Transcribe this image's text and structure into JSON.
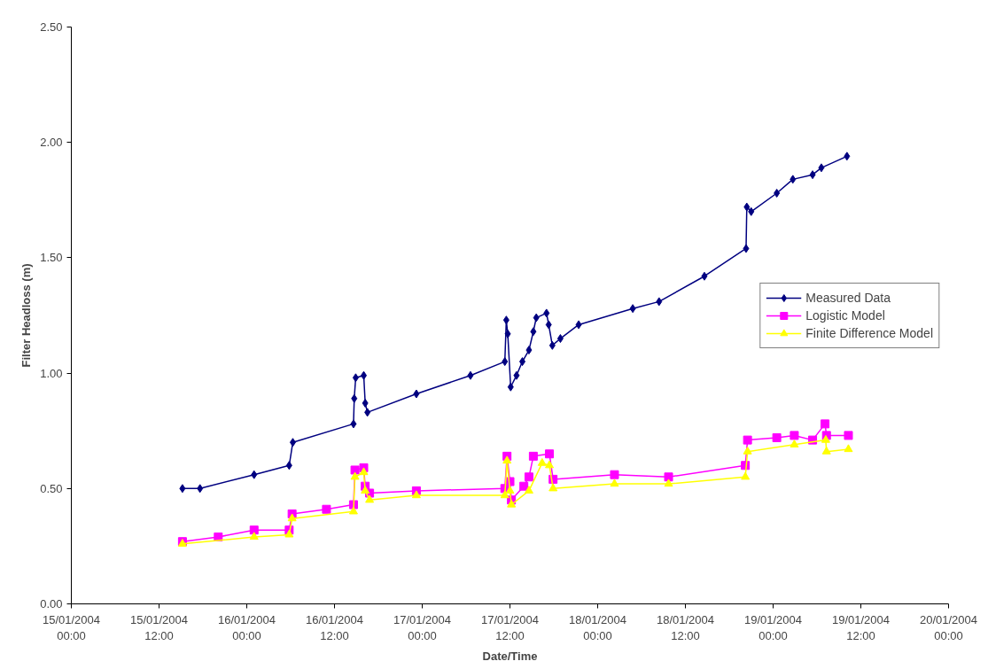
{
  "chart_data": {
    "type": "line",
    "xlabel": "Date/Time",
    "ylabel": "Filter Headloss (m)",
    "xlim": [
      "2004-01-15T00:00",
      "2004-01-20T00:00"
    ],
    "xticks": [
      {
        "value": "2004-01-15T00:00",
        "label": "15/01/2004\n00:00"
      },
      {
        "value": "2004-01-15T12:00",
        "label": "15/01/2004\n12:00"
      },
      {
        "value": "2004-01-16T00:00",
        "label": "16/01/2004\n00:00"
      },
      {
        "value": "2004-01-16T12:00",
        "label": "16/01/2004\n12:00"
      },
      {
        "value": "2004-01-17T00:00",
        "label": "17/01/2004\n00:00"
      },
      {
        "value": "2004-01-17T12:00",
        "label": "17/01/2004\n12:00"
      },
      {
        "value": "2004-01-18T00:00",
        "label": "18/01/2004\n00:00"
      },
      {
        "value": "2004-01-18T12:00",
        "label": "18/01/2004\n12:00"
      },
      {
        "value": "2004-01-19T00:00",
        "label": "19/01/2004\n00:00"
      },
      {
        "value": "2004-01-19T12:00",
        "label": "19/01/2004\n12:00"
      },
      {
        "value": "2004-01-20T00:00",
        "label": "20/01/2004\n00:00"
      }
    ],
    "ylim": [
      0,
      2.5
    ],
    "yticks": [
      {
        "value": 0,
        "label": "0.00"
      },
      {
        "value": 0.5,
        "label": "0.50"
      },
      {
        "value": 1,
        "label": "1.00"
      },
      {
        "value": 1.5,
        "label": "1.50"
      },
      {
        "value": 2,
        "label": "2.00"
      },
      {
        "value": 2.5,
        "label": "2.50"
      }
    ],
    "grid": false,
    "legend": "right",
    "series": [
      {
        "name": "Measured Data",
        "color": "#000080",
        "marker": "diamond",
        "x": [
          "2004-01-15T15:12",
          "2004-01-15T17:36",
          "2004-01-16T01:00",
          "2004-01-16T05:48",
          "2004-01-16T06:18",
          "2004-01-16T14:36",
          "2004-01-16T14:42",
          "2004-01-16T14:54",
          "2004-01-16T16:00",
          "2004-01-16T16:12",
          "2004-01-16T16:30",
          "2004-01-16T23:12",
          "2004-01-17T06:36",
          "2004-01-17T11:18",
          "2004-01-17T11:30",
          "2004-01-17T11:42",
          "2004-01-17T12:06",
          "2004-01-17T12:54",
          "2004-01-17T13:42",
          "2004-01-17T14:36",
          "2004-01-17T15:12",
          "2004-01-17T15:36",
          "2004-01-17T17:00",
          "2004-01-17T17:18",
          "2004-01-17T17:48",
          "2004-01-17T18:54",
          "2004-01-17T21:24",
          "2004-01-18T04:48",
          "2004-01-18T08:24",
          "2004-01-18T14:36",
          "2004-01-18T20:18",
          "2004-01-18T20:24",
          "2004-01-18T21:00",
          "2004-01-19T00:30",
          "2004-01-19T02:42",
          "2004-01-19T05:24",
          "2004-01-19T06:36",
          "2004-01-19T10:06"
        ],
        "values": [
          0.5,
          0.5,
          0.56,
          0.6,
          0.7,
          0.78,
          0.89,
          0.98,
          0.99,
          0.87,
          0.83,
          0.91,
          0.99,
          1.05,
          1.23,
          1.17,
          0.94,
          0.99,
          1.05,
          1.1,
          1.18,
          1.24,
          1.26,
          1.21,
          1.12,
          1.15,
          1.21,
          1.28,
          1.31,
          1.42,
          1.54,
          1.72,
          1.7,
          1.78,
          1.84,
          1.86,
          1.89,
          1.94
        ]
      },
      {
        "name": "Logistic Model",
        "color": "#ff00ff",
        "marker": "square",
        "x": [
          "2004-01-15T15:12",
          "2004-01-15T20:06",
          "2004-01-16T01:00",
          "2004-01-16T05:48",
          "2004-01-16T06:12",
          "2004-01-16T10:54",
          "2004-01-16T14:36",
          "2004-01-16T14:48",
          "2004-01-16T16:00",
          "2004-01-16T16:12",
          "2004-01-16T16:48",
          "2004-01-16T23:12",
          "2004-01-17T11:18",
          "2004-01-17T11:36",
          "2004-01-17T12:00",
          "2004-01-17T12:12",
          "2004-01-17T13:54",
          "2004-01-17T14:36",
          "2004-01-17T15:12",
          "2004-01-17T17:24",
          "2004-01-17T17:54",
          "2004-01-18T02:18",
          "2004-01-18T09:42",
          "2004-01-18T20:12",
          "2004-01-18T20:30",
          "2004-01-19T00:30",
          "2004-01-19T02:54",
          "2004-01-19T05:24",
          "2004-01-19T07:06",
          "2004-01-19T07:18",
          "2004-01-19T10:18"
        ],
        "values": [
          0.27,
          0.29,
          0.32,
          0.32,
          0.39,
          0.41,
          0.43,
          0.58,
          0.59,
          0.51,
          0.48,
          0.49,
          0.5,
          0.64,
          0.53,
          0.45,
          0.51,
          0.55,
          0.64,
          0.65,
          0.54,
          0.56,
          0.55,
          0.6,
          0.71,
          0.72,
          0.73,
          0.71,
          0.78,
          0.73,
          0.73
        ]
      },
      {
        "name": "Finite Difference Model",
        "color": "#ffff00",
        "marker": "triangle",
        "x": [
          "2004-01-15T15:12",
          "2004-01-16T01:00",
          "2004-01-16T05:48",
          "2004-01-16T06:12",
          "2004-01-16T14:36",
          "2004-01-16T14:48",
          "2004-01-16T16:00",
          "2004-01-16T16:12",
          "2004-01-16T16:48",
          "2004-01-16T23:12",
          "2004-01-17T11:18",
          "2004-01-17T11:36",
          "2004-01-17T12:00",
          "2004-01-17T12:12",
          "2004-01-17T14:36",
          "2004-01-17T16:24",
          "2004-01-17T17:24",
          "2004-01-17T17:54",
          "2004-01-18T02:18",
          "2004-01-18T09:42",
          "2004-01-18T20:12",
          "2004-01-18T20:30",
          "2004-01-19T02:54",
          "2004-01-19T07:12",
          "2004-01-19T07:18",
          "2004-01-19T10:18"
        ],
        "values": [
          0.26,
          0.29,
          0.3,
          0.37,
          0.4,
          0.55,
          0.57,
          0.49,
          0.45,
          0.47,
          0.47,
          0.62,
          0.49,
          0.43,
          0.49,
          0.61,
          0.6,
          0.5,
          0.52,
          0.52,
          0.55,
          0.66,
          0.69,
          0.71,
          0.66,
          0.67
        ]
      }
    ]
  }
}
